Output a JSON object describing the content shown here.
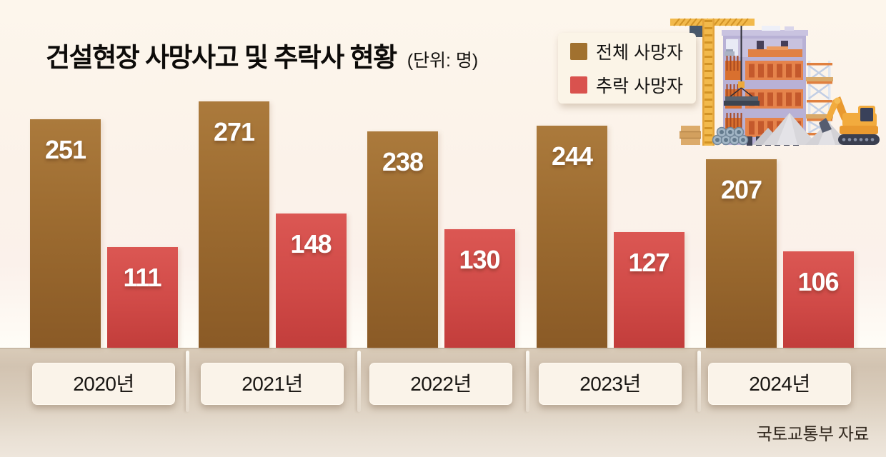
{
  "title": "건설현장 사망사고 및 추락사 현황",
  "unit_label": "(단위: 명)",
  "legend": {
    "total": "전체 사망자",
    "fall": "추락 사망자"
  },
  "source": "국토교통부 자료",
  "colors": {
    "total_bar": "#9c6b30",
    "fall_bar": "#d04a47",
    "background": "#fcf4ea",
    "ground": "#d7c9b9",
    "label_box": "#faf3e9",
    "value_text": "#ffffff"
  },
  "chart_data": {
    "type": "bar",
    "title": "건설현장 사망사고 및 추락사 현황",
    "unit": "(단위: 명)",
    "source": "국토교통부 자료",
    "categories": [
      "2020년",
      "2021년",
      "2022년",
      "2023년",
      "2024년"
    ],
    "series": [
      {
        "name": "전체 사망자",
        "color": "#9c6b30",
        "values": [
          251,
          271,
          238,
          244,
          207
        ]
      },
      {
        "name": "추락 사망자",
        "color": "#d9524e",
        "values": [
          111,
          148,
          130,
          127,
          106
        ]
      }
    ],
    "ylim": [
      0,
      280
    ],
    "grid": false,
    "axis_labels_hidden": true,
    "legend_position": "top-right",
    "value_labels": "inside-top"
  }
}
